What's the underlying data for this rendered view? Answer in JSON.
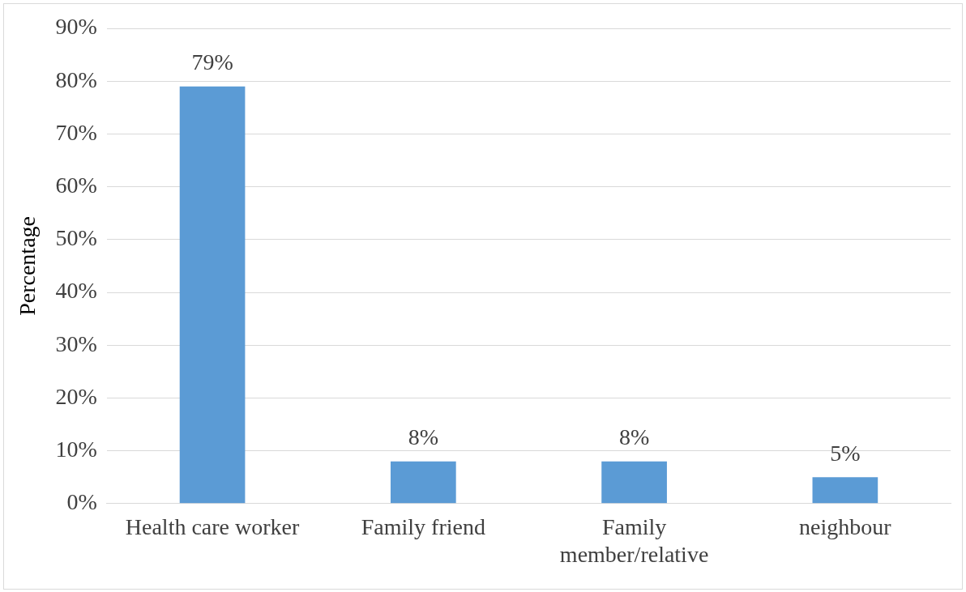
{
  "chart_data": {
    "type": "bar",
    "ylabel": "Percentage",
    "categories": [
      "Health care worker",
      "Family friend",
      "Family member/relative",
      "neighbour"
    ],
    "values": [
      79,
      8,
      8,
      5
    ],
    "color": "#5b9bd5",
    "value_labels": [
      "79%",
      "8%",
      "8%",
      "5%"
    ],
    "ylim": [
      0,
      90
    ],
    "yticks": [
      {
        "value": 0,
        "label": "0%"
      },
      {
        "value": 10,
        "label": "10%"
      },
      {
        "value": 20,
        "label": "20%"
      },
      {
        "value": 30,
        "label": "30%"
      },
      {
        "value": 40,
        "label": "40%"
      },
      {
        "value": 50,
        "label": "50%"
      },
      {
        "value": 60,
        "label": "60%"
      },
      {
        "value": 70,
        "label": "70%"
      },
      {
        "value": 80,
        "label": "80%"
      },
      {
        "value": 90,
        "label": "90%"
      }
    ],
    "grid": "y",
    "legend": false
  }
}
